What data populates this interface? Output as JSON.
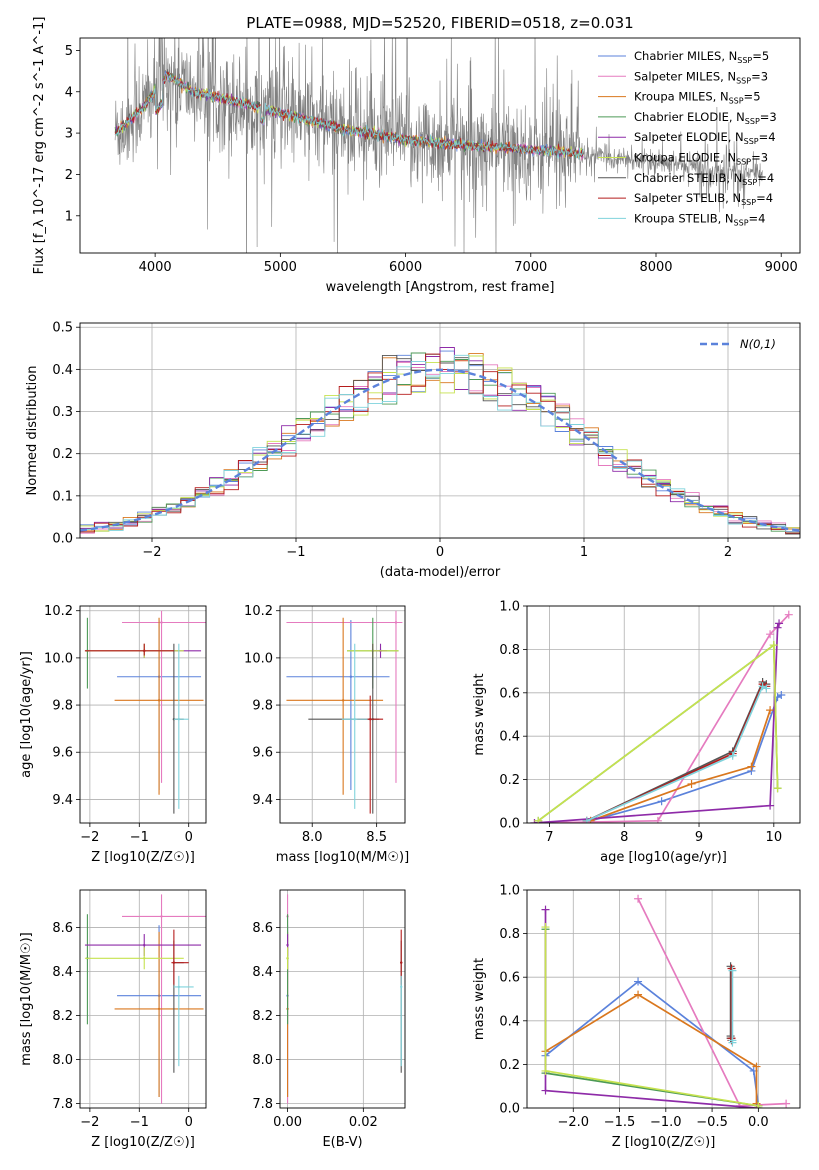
{
  "figure": {
    "title": "PLATE=0988, MJD=52520, FIBERID=0518, z=0.031"
  },
  "colors": {
    "Chabrier MILES": "#5b82db",
    "Salpeter MILES": "#e57bbf",
    "Kroupa MILES": "#d9771e",
    "Chabrier ELODIE": "#4d9a57",
    "Salpeter ELODIE": "#8e2ba8",
    "Kroupa ELODIE": "#c6e24f",
    "Chabrier STELIB": "#555555",
    "Salpeter STELIB": "#b51c1c",
    "Kroupa STELIB": "#7fd3dc",
    "data": "#808080",
    "gaussian": "#5b82db"
  },
  "chart_data": [
    {
      "id": "spectrum",
      "type": "line",
      "title": "PLATE=0988, MJD=52520, FIBERID=0518, z=0.031",
      "xlabel": "wavelength [Angstrom, rest frame]",
      "ylabel": "Flux [f_λ 10^-17 erg cm^-2 s^-1 A^-1]",
      "xlim": [
        3400,
        9150
      ],
      "ylim": [
        0.1,
        5.3
      ],
      "xticks": [
        4000,
        5000,
        6000,
        7000,
        8000,
        9000
      ],
      "yticks": [
        1,
        2,
        3,
        4,
        5
      ],
      "legend_position": "upper right",
      "legend": [
        {
          "name": "Chabrier MILES",
          "nssp": "5"
        },
        {
          "name": "Salpeter MILES",
          "nssp": "3"
        },
        {
          "name": "Kroupa MILES",
          "nssp": "5"
        },
        {
          "name": "Chabrier ELODIE",
          "nssp": "3"
        },
        {
          "name": "Salpeter ELODIE",
          "nssp": "4"
        },
        {
          "name": "Kroupa ELODIE",
          "nssp": "3"
        },
        {
          "name": "Chabrier STELIB",
          "nssp": "4"
        },
        {
          "name": "Salpeter STELIB",
          "nssp": "4"
        },
        {
          "name": "Kroupa STELIB",
          "nssp": "4"
        }
      ],
      "data_x_range": [
        3680,
        8850
      ],
      "model_x_range": [
        3680,
        7420
      ],
      "continuum": {
        "x": [
          3680,
          3900,
          4100,
          4300,
          4600,
          5000,
          5500,
          6000,
          6500,
          7000,
          7400,
          8000,
          8850
        ],
        "y": [
          3.0,
          3.6,
          4.4,
          4.0,
          3.8,
          3.5,
          3.1,
          2.85,
          2.7,
          2.6,
          2.5,
          2.3,
          2.0
        ]
      }
    },
    {
      "id": "residuals",
      "type": "histogram",
      "xlabel": "(data-model)/error",
      "ylabel": "Normed distribution",
      "xlim": [
        -2.5,
        2.5
      ],
      "ylim": [
        0,
        0.51
      ],
      "xticks": [
        -2,
        -1,
        0,
        1,
        2
      ],
      "yticks": [
        0.0,
        0.1,
        0.2,
        0.3,
        0.4,
        0.5
      ],
      "grid": true,
      "legend_position": "upper right",
      "gaussian_label": "N(0,1)",
      "bin_width": 0.1
    },
    {
      "id": "age_vs_Z",
      "type": "errorbar",
      "xlabel": "Z [log10(Z/Z☉)]",
      "ylabel": "age [log10(age/yr)]",
      "xlim": [
        -2.2,
        0.35
      ],
      "ylim": [
        9.3,
        10.22
      ],
      "xticks": [
        -2,
        -1,
        0
      ],
      "yticks": [
        9.4,
        9.6,
        9.8,
        10.0,
        10.2
      ],
      "grid": true,
      "points": [
        {
          "model": "Chabrier MILES",
          "x": -0.6,
          "xerr": [
            0.85,
            0.85
          ],
          "y": 9.92,
          "yerr": [
            0.48,
            0.24
          ]
        },
        {
          "model": "Salpeter MILES",
          "x": -0.55,
          "xerr": [
            0.8,
            0.9
          ],
          "y": 10.15,
          "yerr": [
            0.68,
            0.05
          ]
        },
        {
          "model": "Kroupa MILES",
          "x": -0.6,
          "xerr": [
            0.9,
            0.9
          ],
          "y": 9.82,
          "yerr": [
            0.4,
            0.35
          ]
        },
        {
          "model": "Chabrier ELODIE",
          "x": -2.05,
          "xerr": [
            0.01,
            0.01
          ],
          "y": 10.03,
          "yerr": [
            0.16,
            0.14
          ]
        },
        {
          "model": "Salpeter ELODIE",
          "x": -0.9,
          "xerr": [
            1.2,
            1.15
          ],
          "y": 10.03,
          "yerr": [
            0.03,
            0.03
          ]
        },
        {
          "model": "Kroupa ELODIE",
          "x": -0.9,
          "xerr": [
            1.2,
            0.8
          ],
          "y": 10.03,
          "yerr": [
            0.03,
            0.03
          ]
        },
        {
          "model": "Chabrier STELIB",
          "x": -0.3,
          "xerr": [
            0.01,
            0.2
          ],
          "y": 9.74,
          "yerr": [
            0.4,
            0.32
          ]
        },
        {
          "model": "Salpeter STELIB",
          "x": -0.9,
          "xerr": [
            1.2,
            0.6
          ],
          "y": 10.03,
          "yerr": [
            0.02,
            0.03
          ]
        },
        {
          "model": "Kroupa STELIB",
          "x": -0.2,
          "xerr": [
            0.1,
            0.2
          ],
          "y": 9.74,
          "yerr": [
            0.38,
            0.32
          ]
        }
      ]
    },
    {
      "id": "age_vs_mass",
      "type": "errorbar",
      "xlabel": "mass [log10(M/M☉)]",
      "ylabel": "",
      "xlim": [
        7.75,
        8.72
      ],
      "ylim": [
        9.3,
        10.22
      ],
      "xticks": [
        8.0,
        8.5
      ],
      "yticks": [
        9.4,
        9.6,
        9.8,
        10.0,
        10.2
      ],
      "grid": true,
      "points": [
        {
          "model": "Chabrier MILES",
          "x": 8.3,
          "xerr": [
            0.5,
            0.3
          ],
          "y": 9.92,
          "yerr": [
            0.48,
            0.24
          ]
        },
        {
          "model": "Salpeter MILES",
          "x": 8.65,
          "xerr": [
            0.85,
            0.05
          ],
          "y": 10.15,
          "yerr": [
            0.68,
            0.05
          ]
        },
        {
          "model": "Kroupa MILES",
          "x": 8.24,
          "xerr": [
            0.44,
            0.31
          ],
          "y": 9.82,
          "yerr": [
            0.4,
            0.35
          ]
        },
        {
          "model": "Chabrier ELODIE",
          "x": 8.47,
          "xerr": [
            0.2,
            0.2
          ],
          "y": 10.03,
          "yerr": [
            0.16,
            0.14
          ]
        },
        {
          "model": "Salpeter ELODIE",
          "x": 8.53,
          "xerr": [
            0.05,
            0.05
          ],
          "y": 10.03,
          "yerr": [
            0.03,
            0.03
          ]
        },
        {
          "model": "Kroupa ELODIE",
          "x": 8.47,
          "xerr": [
            0.2,
            0.2
          ],
          "y": 10.03,
          "yerr": [
            0.03,
            0.03
          ]
        },
        {
          "model": "Chabrier STELIB",
          "x": 8.47,
          "xerr": [
            0.5,
            0.05
          ],
          "y": 9.74,
          "yerr": [
            0.4,
            0.32
          ]
        },
        {
          "model": "Salpeter STELIB",
          "x": 8.45,
          "xerr": [
            0.1,
            0.1
          ],
          "y": 9.74,
          "yerr": [
            0.4,
            0.1
          ]
        },
        {
          "model": "Kroupa STELIB",
          "x": 8.33,
          "xerr": [
            0.1,
            0.1
          ],
          "y": 9.74,
          "yerr": [
            0.38,
            0.32
          ]
        }
      ]
    },
    {
      "id": "cum_weight_vs_age",
      "type": "line",
      "xlabel": "age [log10(age/yr)]",
      "ylabel": "mass weight",
      "xlim": [
        6.7,
        10.35
      ],
      "ylim": [
        0,
        1
      ],
      "xticks": [
        7,
        8,
        9,
        10
      ],
      "yticks": [
        0.0,
        0.2,
        0.4,
        0.6,
        0.8,
        1.0
      ],
      "grid": true,
      "series": [
        {
          "model": "Chabrier MILES",
          "x": [
            7.55,
            8.5,
            9.7,
            10.05,
            10.1
          ],
          "y": [
            0.01,
            0.1,
            0.24,
            0.58,
            0.59
          ]
        },
        {
          "model": "Salpeter MILES",
          "x": [
            6.8,
            8.45,
            9.95,
            10.2
          ],
          "y": [
            0.0,
            0.01,
            0.87,
            0.96
          ]
        },
        {
          "model": "Kroupa MILES",
          "x": [
            7.55,
            8.9,
            9.7,
            9.95
          ],
          "y": [
            0.01,
            0.18,
            0.26,
            0.52
          ]
        },
        {
          "model": "Chabrier ELODIE",
          "x": [
            6.85,
            10.0,
            10.05
          ],
          "y": [
            0.01,
            0.82,
            0.16
          ]
        },
        {
          "model": "Salpeter ELODIE",
          "x": [
            6.8,
            9.95,
            10.05,
            10.07
          ],
          "y": [
            0.0,
            0.08,
            0.9,
            0.92
          ]
        },
        {
          "model": "Kroupa ELODIE",
          "x": [
            6.85,
            10.0,
            10.05
          ],
          "y": [
            0.01,
            0.82,
            0.16
          ]
        },
        {
          "model": "Chabrier STELIB",
          "x": [
            7.5,
            9.45,
            9.85,
            9.9
          ],
          "y": [
            0.01,
            0.33,
            0.65,
            0.64
          ]
        },
        {
          "model": "Salpeter STELIB",
          "x": [
            7.5,
            9.45,
            9.85,
            9.9
          ],
          "y": [
            0.01,
            0.32,
            0.64,
            0.63
          ]
        },
        {
          "model": "Kroupa STELIB",
          "x": [
            7.5,
            9.45,
            9.85,
            9.9
          ],
          "y": [
            0.01,
            0.31,
            0.63,
            0.62
          ]
        }
      ]
    },
    {
      "id": "mass_vs_Z",
      "type": "errorbar",
      "xlabel": "Z [log10(Z/Z☉)]",
      "ylabel": "mass [log10(M/M☉)]",
      "xlim": [
        -2.2,
        0.35
      ],
      "ylim": [
        7.78,
        8.77
      ],
      "xticks": [
        -2,
        -1,
        0
      ],
      "yticks": [
        7.8,
        8.0,
        8.2,
        8.4,
        8.6
      ],
      "grid": true,
      "points": [
        {
          "model": "Chabrier MILES",
          "x": -0.6,
          "xerr": [
            0.85,
            0.85
          ],
          "y": 8.29,
          "yerr": [
            0.46,
            0.32
          ]
        },
        {
          "model": "Salpeter MILES",
          "x": -0.55,
          "xerr": [
            0.8,
            0.9
          ],
          "y": 8.65,
          "yerr": [
            0.85,
            0.1
          ]
        },
        {
          "model": "Kroupa MILES",
          "x": -0.6,
          "xerr": [
            0.9,
            0.9
          ],
          "y": 8.23,
          "yerr": [
            0.4,
            0.35
          ]
        },
        {
          "model": "Chabrier ELODIE",
          "x": -2.05,
          "xerr": [
            0.01,
            0.01
          ],
          "y": 8.46,
          "yerr": [
            0.3,
            0.2
          ]
        },
        {
          "model": "Salpeter ELODIE",
          "x": -0.9,
          "xerr": [
            1.2,
            1.15
          ],
          "y": 8.52,
          "yerr": [
            0.05,
            0.05
          ]
        },
        {
          "model": "Kroupa ELODIE",
          "x": -0.9,
          "xerr": [
            1.2,
            0.8
          ],
          "y": 8.46,
          "yerr": [
            0.05,
            0.05
          ]
        },
        {
          "model": "Chabrier STELIB",
          "x": -0.3,
          "xerr": [
            0.01,
            0.2
          ],
          "y": 8.44,
          "yerr": [
            0.5,
            0.1
          ]
        },
        {
          "model": "Salpeter STELIB",
          "x": -0.3,
          "xerr": [
            0.05,
            0.3
          ],
          "y": 8.44,
          "yerr": [
            0.1,
            0.15
          ]
        },
        {
          "model": "Kroupa STELIB",
          "x": -0.2,
          "xerr": [
            0.1,
            0.3
          ],
          "y": 8.33,
          "yerr": [
            0.36,
            0.05
          ]
        }
      ]
    },
    {
      "id": "mass_vs_ebv",
      "type": "errorbar",
      "xlabel": "E(B-V)",
      "ylabel": "",
      "xlim": [
        -0.002,
        0.031
      ],
      "ylim": [
        7.78,
        8.77
      ],
      "xticks": [
        0.0,
        0.02
      ],
      "yticks": [
        7.8,
        8.0,
        8.2,
        8.4,
        8.6
      ],
      "grid": true,
      "points": [
        {
          "model": "Chabrier MILES",
          "x": 0.0,
          "y": 8.29,
          "yerr": [
            0.46,
            0.32
          ]
        },
        {
          "model": "Salpeter MILES",
          "x": 0.0,
          "y": 8.65,
          "yerr": [
            0.85,
            0.1
          ]
        },
        {
          "model": "Kroupa MILES",
          "x": 0.0,
          "y": 8.23,
          "yerr": [
            0.4,
            0.35
          ]
        },
        {
          "model": "Chabrier ELODIE",
          "x": 0.0,
          "y": 8.46,
          "yerr": [
            0.3,
            0.2
          ]
        },
        {
          "model": "Salpeter ELODIE",
          "x": 0.0,
          "y": 8.52,
          "yerr": [
            0.05,
            0.05
          ]
        },
        {
          "model": "Kroupa ELODIE",
          "x": 0.0,
          "y": 8.46,
          "yerr": [
            0.05,
            0.05
          ]
        },
        {
          "model": "Chabrier STELIB",
          "x": 0.03,
          "y": 8.44,
          "yerr": [
            0.5,
            0.1
          ]
        },
        {
          "model": "Salpeter STELIB",
          "x": 0.03,
          "y": 8.44,
          "yerr": [
            0.1,
            0.15
          ]
        },
        {
          "model": "Kroupa STELIB",
          "x": 0.03,
          "y": 8.33,
          "yerr": [
            0.36,
            0.05
          ]
        }
      ]
    },
    {
      "id": "cum_weight_vs_Z",
      "type": "line",
      "xlabel": "Z [log10(Z/Z☉)]",
      "ylabel": "mass weight",
      "xlim": [
        -2.5,
        0.45
      ],
      "ylim": [
        0,
        1
      ],
      "xticks": [
        -2.0,
        -1.5,
        -1.0,
        -0.5,
        0.0
      ],
      "yticks": [
        0.0,
        0.2,
        0.4,
        0.6,
        0.8,
        1.0
      ],
      "grid": true,
      "series": [
        {
          "model": "Chabrier MILES",
          "x": [
            -2.3,
            -1.3,
            -0.05,
            0.0
          ],
          "y": [
            0.24,
            0.58,
            0.17,
            0.01
          ]
        },
        {
          "model": "Salpeter MILES",
          "x": [
            -1.3,
            -0.2,
            0.3
          ],
          "y": [
            0.96,
            0.01,
            0.02
          ]
        },
        {
          "model": "Kroupa MILES",
          "x": [
            -2.3,
            -1.3,
            -0.02,
            -0.02
          ],
          "y": [
            0.26,
            0.52,
            0.19,
            0.02
          ]
        },
        {
          "model": "Chabrier ELODIE",
          "x": [
            -2.3,
            -2.3,
            0.0,
            0.0
          ],
          "y": [
            0.82,
            0.16,
            0.01,
            0.0
          ]
        },
        {
          "model": "Salpeter ELODIE",
          "x": [
            -2.3,
            -2.3,
            -0.02,
            -0.02
          ],
          "y": [
            0.91,
            0.08,
            0.0,
            0.0
          ]
        },
        {
          "model": "Kroupa ELODIE",
          "x": [
            -2.3,
            -2.3,
            0.0,
            0.0
          ],
          "y": [
            0.83,
            0.17,
            0.01,
            0.0
          ]
        },
        {
          "model": "Chabrier STELIB",
          "x": [
            -0.3,
            -0.3,
            -0.3
          ],
          "y": [
            0.65,
            0.33,
            0.32
          ]
        },
        {
          "model": "Salpeter STELIB",
          "x": [
            -0.29,
            -0.29,
            -0.29
          ],
          "y": [
            0.64,
            0.32,
            0.31
          ]
        },
        {
          "model": "Kroupa STELIB",
          "x": [
            -0.28,
            -0.28,
            -0.28
          ],
          "y": [
            0.63,
            0.31,
            0.3
          ]
        }
      ]
    }
  ]
}
